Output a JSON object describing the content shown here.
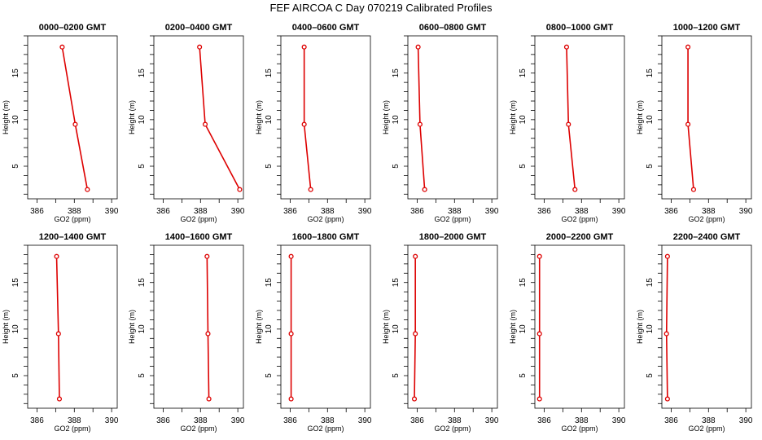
{
  "title": "FEF AIRCOA C  Day 070219  Calibrated Profiles",
  "colors": {
    "line": "#dd0000",
    "axis": "#000000"
  },
  "chart_data": [
    {
      "type": "line",
      "title": "0000–0200 GMT",
      "xlabel": "GO2 (ppm)",
      "ylabel": "Height (m)",
      "xlim": [
        385.5,
        390.3
      ],
      "ylim": [
        1.5,
        19
      ],
      "xticks": [
        386,
        388,
        390
      ],
      "yticks": [
        5,
        10,
        15
      ],
      "x": [
        388.7,
        388.05,
        387.35
      ],
      "y": [
        2.5,
        9.5,
        17.8
      ]
    },
    {
      "type": "line",
      "title": "0200–0400 GMT",
      "xlabel": "GO2 (ppm)",
      "ylabel": "Height (m)",
      "xlim": [
        385.5,
        390.3
      ],
      "ylim": [
        1.5,
        19
      ],
      "xticks": [
        386,
        388,
        390
      ],
      "yticks": [
        5,
        10,
        15
      ],
      "x": [
        390.1,
        388.25,
        387.95
      ],
      "y": [
        2.5,
        9.5,
        17.8
      ]
    },
    {
      "type": "line",
      "title": "0400–0600 GMT",
      "xlabel": "GO2 (ppm)",
      "ylabel": "Height (m)",
      "xlim": [
        385.5,
        390.3
      ],
      "ylim": [
        1.5,
        19
      ],
      "xticks": [
        386,
        388,
        390
      ],
      "yticks": [
        5,
        10,
        15
      ],
      "x": [
        387.1,
        386.75,
        386.75
      ],
      "y": [
        2.5,
        9.5,
        17.8
      ]
    },
    {
      "type": "line",
      "title": "0600–0800 GMT",
      "xlabel": "GO2 (ppm)",
      "ylabel": "Height (m)",
      "xlim": [
        385.5,
        390.3
      ],
      "ylim": [
        1.5,
        19
      ],
      "xticks": [
        386,
        388,
        390
      ],
      "yticks": [
        5,
        10,
        15
      ],
      "x": [
        386.4,
        386.15,
        386.05
      ],
      "y": [
        2.5,
        9.5,
        17.8
      ]
    },
    {
      "type": "line",
      "title": "0800–1000 GMT",
      "xlabel": "GO2 (ppm)",
      "ylabel": "Height (m)",
      "xlim": [
        385.5,
        390.3
      ],
      "ylim": [
        1.5,
        19
      ],
      "xticks": [
        386,
        388,
        390
      ],
      "yticks": [
        5,
        10,
        15
      ],
      "x": [
        387.65,
        387.3,
        387.2
      ],
      "y": [
        2.5,
        9.5,
        17.8
      ]
    },
    {
      "type": "line",
      "title": "1000–1200 GMT",
      "xlabel": "GO2 (ppm)",
      "ylabel": "Height (m)",
      "xlim": [
        385.5,
        390.3
      ],
      "ylim": [
        1.5,
        19
      ],
      "xticks": [
        386,
        388,
        390
      ],
      "yticks": [
        5,
        10,
        15
      ],
      "x": [
        387.2,
        386.9,
        386.9
      ],
      "y": [
        2.5,
        9.5,
        17.8
      ]
    },
    {
      "type": "line",
      "title": "1200–1400 GMT",
      "xlabel": "GO2 (ppm)",
      "ylabel": "Height (m)",
      "xlim": [
        385.5,
        390.3
      ],
      "ylim": [
        1.5,
        19
      ],
      "xticks": [
        386,
        388,
        390
      ],
      "yticks": [
        5,
        10,
        15
      ],
      "x": [
        387.2,
        387.15,
        387.05
      ],
      "y": [
        2.5,
        9.5,
        17.8
      ]
    },
    {
      "type": "line",
      "title": "1400–1600 GMT",
      "xlabel": "GO2 (ppm)",
      "ylabel": "Height (m)",
      "xlim": [
        385.5,
        390.3
      ],
      "ylim": [
        1.5,
        19
      ],
      "xticks": [
        386,
        388,
        390
      ],
      "yticks": [
        5,
        10,
        15
      ],
      "x": [
        388.45,
        388.4,
        388.35
      ],
      "y": [
        2.5,
        9.5,
        17.8
      ]
    },
    {
      "type": "line",
      "title": "1600–1800 GMT",
      "xlabel": "GO2 (ppm)",
      "ylabel": "Height (m)",
      "xlim": [
        385.5,
        390.3
      ],
      "ylim": [
        1.5,
        19
      ],
      "xticks": [
        386,
        388,
        390
      ],
      "yticks": [
        5,
        10,
        15
      ],
      "x": [
        386.05,
        386.05,
        386.05
      ],
      "y": [
        2.5,
        9.5,
        17.8
      ]
    },
    {
      "type": "line",
      "title": "1800–2000 GMT",
      "xlabel": "GO2 (ppm)",
      "ylabel": "Height (m)",
      "xlim": [
        385.5,
        390.3
      ],
      "ylim": [
        1.5,
        19
      ],
      "xticks": [
        386,
        388,
        390
      ],
      "yticks": [
        5,
        10,
        15
      ],
      "x": [
        385.85,
        385.9,
        385.9
      ],
      "y": [
        2.5,
        9.5,
        17.8
      ]
    },
    {
      "type": "line",
      "title": "2000–2200 GMT",
      "xlabel": "GO2 (ppm)",
      "ylabel": "Height (m)",
      "xlim": [
        385.5,
        390.3
      ],
      "ylim": [
        1.5,
        19
      ],
      "xticks": [
        386,
        388,
        390
      ],
      "yticks": [
        5,
        10,
        15
      ],
      "x": [
        385.75,
        385.75,
        385.75
      ],
      "y": [
        2.5,
        9.5,
        17.8
      ]
    },
    {
      "type": "line",
      "title": "2200–2400 GMT",
      "xlabel": "GO2 (ppm)",
      "ylabel": "Height (m)",
      "xlim": [
        385.5,
        390.3
      ],
      "ylim": [
        1.5,
        19
      ],
      "xticks": [
        386,
        388,
        390
      ],
      "yticks": [
        5,
        10,
        15
      ],
      "x": [
        385.8,
        385.75,
        385.8
      ],
      "y": [
        2.5,
        9.5,
        17.8
      ]
    }
  ]
}
